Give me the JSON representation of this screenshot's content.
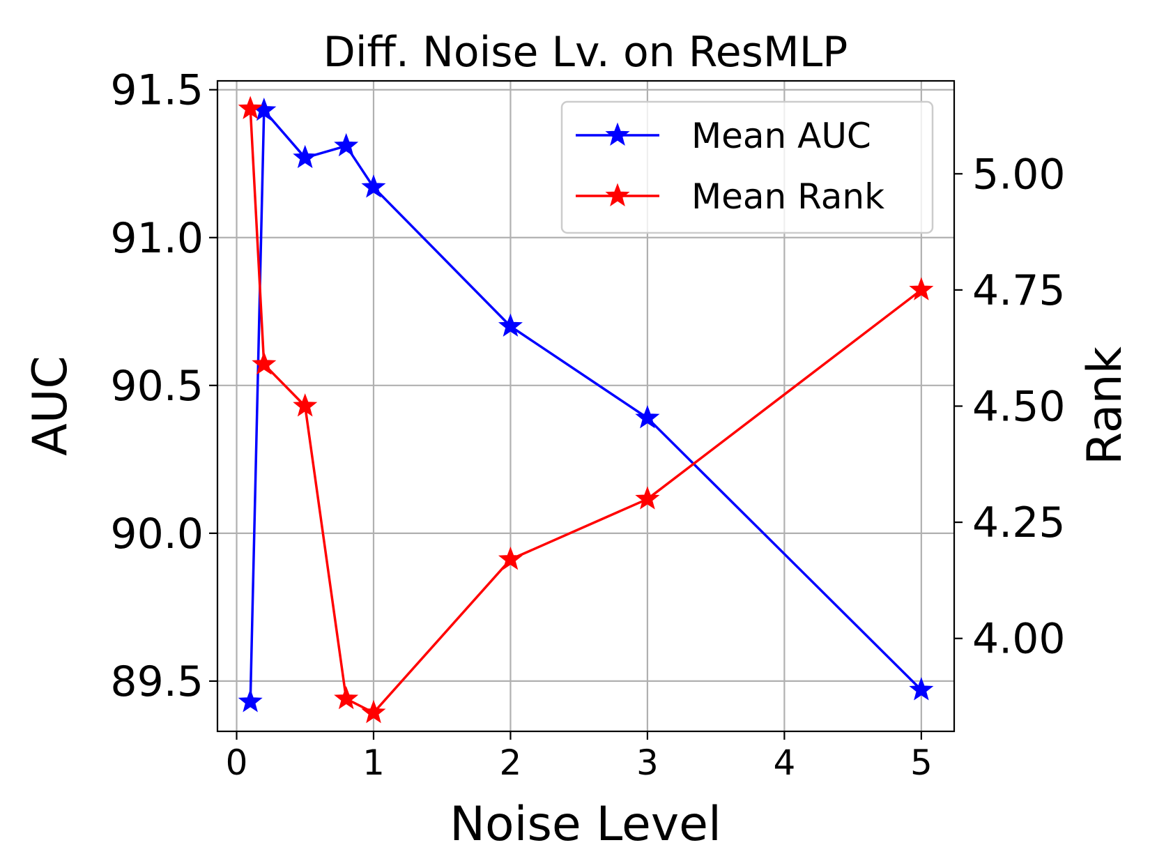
{
  "chart_data": {
    "type": "line",
    "title": "Diff. Noise Lv. on ResMLP",
    "xlabel": "Noise Level",
    "ylabel_left": "AUC",
    "ylabel_right": "Rank",
    "grid": true,
    "legend_position": "top-right",
    "x_ticks": [
      0,
      1,
      2,
      3,
      4,
      5
    ],
    "y_left_ticks": [
      89.5,
      90.0,
      90.5,
      91.0,
      91.5
    ],
    "y_right_ticks": [
      4.0,
      4.25,
      4.5,
      4.75,
      5.0
    ],
    "x_tick_labels": [
      "0",
      "1",
      "2",
      "3",
      "4",
      "5"
    ],
    "y_left_tick_labels": [
      "89.5",
      "90.0",
      "90.5",
      "91.0",
      "91.5"
    ],
    "y_right_tick_labels": [
      "4.00",
      "4.25",
      "4.50",
      "4.75",
      "5.00"
    ],
    "xlim": [
      -0.14,
      5.24
    ],
    "ylim_left": [
      89.33,
      91.53
    ],
    "ylim_right": [
      3.8,
      5.2
    ],
    "x": [
      0.1,
      0.2,
      0.5,
      0.8,
      1.0,
      2.0,
      3.0,
      5.0
    ],
    "series": [
      {
        "name": "Mean AUC",
        "axis": "left",
        "color": "#0000ff",
        "marker": "star",
        "values": [
          89.43,
          91.43,
          91.27,
          91.31,
          91.17,
          90.7,
          90.39,
          89.47
        ]
      },
      {
        "name": "Mean Rank",
        "axis": "right",
        "color": "#ff0000",
        "marker": "star",
        "values": [
          5.14,
          4.59,
          4.5,
          3.87,
          3.84,
          4.17,
          4.3,
          4.75
        ]
      }
    ]
  }
}
